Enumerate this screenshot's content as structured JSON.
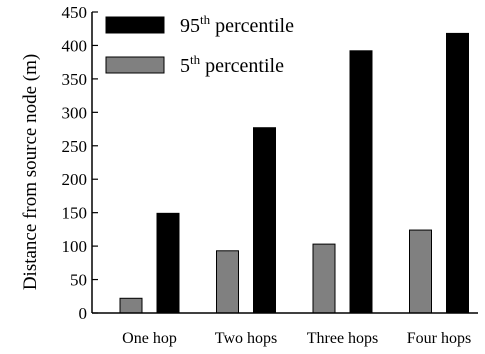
{
  "chart_data": {
    "type": "bar",
    "title": "",
    "xlabel": "",
    "ylabel": "Distance from source node (m)",
    "ylim": [
      0,
      450
    ],
    "yticks": [
      0,
      50,
      100,
      150,
      200,
      250,
      300,
      350,
      400,
      450
    ],
    "categories": [
      "One hop",
      "Two hops",
      "Three hops",
      "Four hops"
    ],
    "series": [
      {
        "name": "5th percentile",
        "name_base": "5",
        "name_sup": "th",
        "name_rest": " percentile",
        "color": "#808080",
        "values": [
          22,
          93,
          103,
          124
        ]
      },
      {
        "name": "95th percentile",
        "name_base": "95",
        "name_sup": "th",
        "name_rest": " percentile",
        "color": "#000000",
        "values": [
          149,
          277,
          392,
          418
        ]
      }
    ],
    "legend": "top-left",
    "grid": false
  }
}
